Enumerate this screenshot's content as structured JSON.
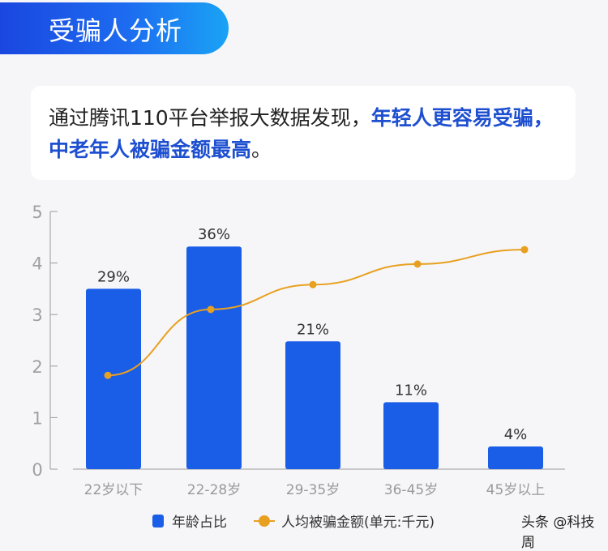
{
  "header": {
    "title": "受骗人分析"
  },
  "summary": {
    "plain": "通过腾讯110平台举报大数据发现，",
    "highlight1": "年轻人更容易受骗",
    "sep": "，",
    "highlight2": "中老年人被骗金额最高",
    "end": "。"
  },
  "colors": {
    "bar": "#1a5ee8",
    "line": "#e8a020",
    "title_gradient_start": "#1a47e0",
    "title_gradient_end": "#1aa3f5",
    "highlight_text": "#1d4fd0"
  },
  "chart_data": {
    "type": "bar",
    "title": "受骗人分析",
    "categories": [
      "22岁以下",
      "22-28岁",
      "29-35岁",
      "36-45岁",
      "45岁以上"
    ],
    "series": [
      {
        "name": "年龄占比",
        "type": "bar",
        "values": [
          3.5,
          4.32,
          2.48,
          1.3,
          0.44
        ],
        "labels": [
          "29%",
          "36%",
          "21%",
          "11%",
          "4%"
        ]
      },
      {
        "name": "人均被骗金额(单元:千元)",
        "type": "line",
        "values": [
          1.82,
          3.1,
          3.58,
          3.98,
          4.26
        ]
      }
    ],
    "yticks": [
      "0",
      "1",
      "2",
      "3",
      "4",
      "5"
    ],
    "ylim": [
      0,
      5
    ],
    "xlabel": "",
    "ylabel": "",
    "grid": false,
    "legend_position": "bottom"
  },
  "legend": {
    "bar_label": "年龄占比",
    "line_label": "人均被骗金额(单元:千元)"
  },
  "watermark": "头条 @科技周"
}
